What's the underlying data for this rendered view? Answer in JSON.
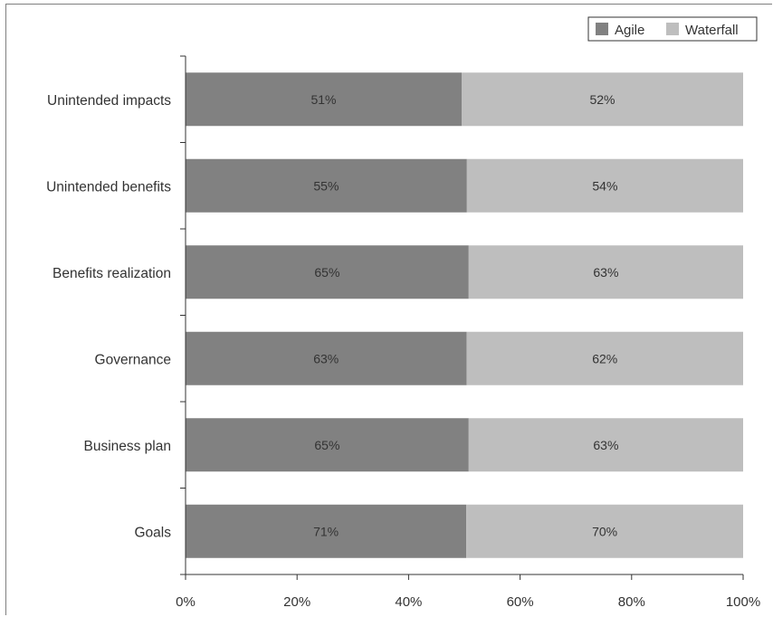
{
  "chart_data": {
    "type": "bar",
    "orientation": "horizontal",
    "stacked": "100%",
    "categories": [
      "Unintended impacts",
      "Unintended benefits",
      "Benefits realization",
      "Governance",
      "Business plan",
      "Goals"
    ],
    "series": [
      {
        "name": "Agile",
        "values": [
          51,
          55,
          65,
          63,
          65,
          71
        ],
        "labels": [
          "51%",
          "55%",
          "65%",
          "63%",
          "65%",
          "71%"
        ],
        "color": "#818181"
      },
      {
        "name": "Waterfall",
        "values": [
          52,
          54,
          63,
          62,
          63,
          70
        ],
        "labels": [
          "52%",
          "54%",
          "63%",
          "62%",
          "63%",
          "70%"
        ],
        "color": "#bebebe"
      }
    ],
    "x_ticks": [
      "0%",
      "20%",
      "40%",
      "60%",
      "80%",
      "100%"
    ],
    "xlim": [
      0,
      100
    ],
    "grid": false,
    "legend": "top-right"
  }
}
